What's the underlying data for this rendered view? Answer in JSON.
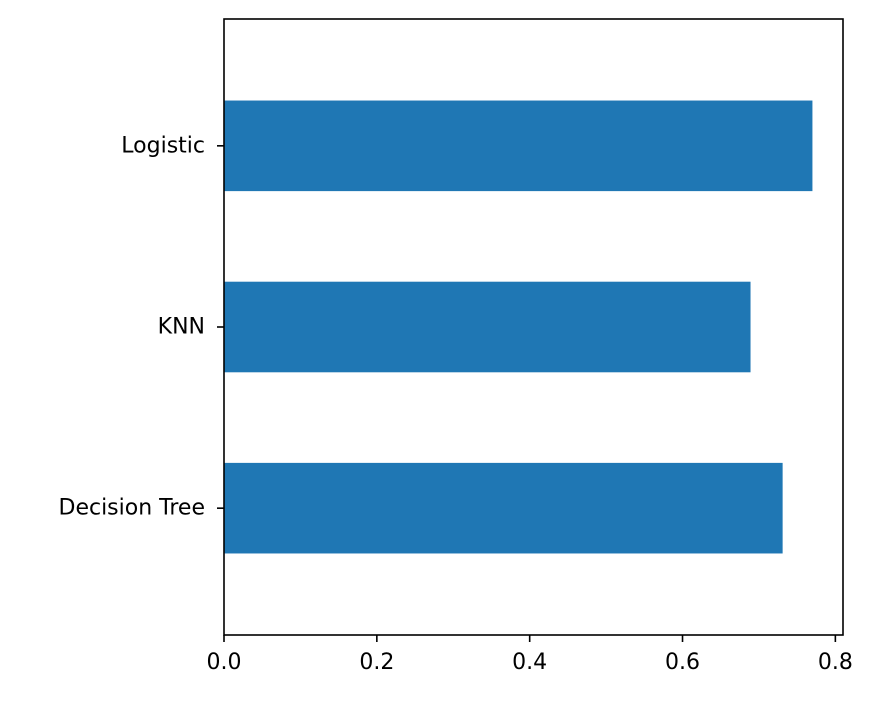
{
  "chart_data": {
    "type": "bar",
    "orientation": "horizontal",
    "title": "",
    "xlabel": "",
    "ylabel": "",
    "categories": [
      "Decision Tree",
      "KNN",
      "Logistic"
    ],
    "values": [
      0.731,
      0.689,
      0.77
    ],
    "xlim": [
      0,
      0.81
    ],
    "xticks": [
      "0.0",
      "0.2",
      "0.4",
      "0.6",
      "0.8"
    ],
    "xtick_values": [
      0,
      0.2,
      0.4,
      0.6,
      0.8
    ],
    "grid": false,
    "legend": "none",
    "bar_color": "#1f77b4"
  }
}
